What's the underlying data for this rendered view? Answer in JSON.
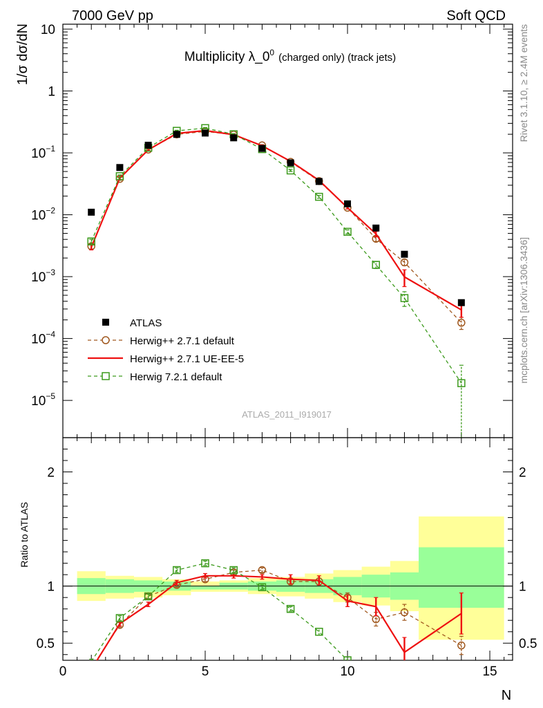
{
  "header": {
    "energy": "7000 GeV pp",
    "category": "Soft QCD"
  },
  "side": {
    "rivet": "Rivet 3.1.10, ≥ 2.4M events",
    "source": "mcplots.cern.ch [arXiv:1306.3436]"
  },
  "watermark": "ATLAS_2011_I919017",
  "colors": {
    "data": "#000000",
    "herwigpp_default": "#a0581e",
    "herwigpp_ueee5": "#ee1111",
    "herwig7": "#3c9a1c",
    "band_inner": "#99ff99",
    "band_outer": "#ffff99"
  },
  "chart_data": [
    {
      "type": "scatter",
      "title": "Multiplicity λ_0⁰ (charged only) (track jets)",
      "title_main": "Multiplicity λ_0",
      "title_sup": "0",
      "title_sub": "(charged only) (track jets)",
      "ylabel": "1/σ dσ/dN",
      "yscale": "log",
      "ylim": [
        2.5e-06,
        12
      ],
      "xlim": [
        0,
        15.8
      ],
      "y_ticks": [
        {
          "value": 10,
          "label": "10",
          "exp": ""
        },
        {
          "value": 1,
          "label": "1",
          "exp": ""
        },
        {
          "value": 0.1,
          "label": "10",
          "exp": "−1"
        },
        {
          "value": 0.01,
          "label": "10",
          "exp": "−2"
        },
        {
          "value": 0.001,
          "label": "10",
          "exp": "−3"
        },
        {
          "value": 0.0001,
          "label": "10",
          "exp": "−4"
        },
        {
          "value": 1e-05,
          "label": "10",
          "exp": "−5"
        }
      ],
      "legend_position": "lower-left",
      "series": [
        {
          "name": "ATLAS",
          "style": "data",
          "x": [
            1,
            2,
            3,
            4,
            5,
            6,
            7,
            8,
            9,
            10,
            11,
            12,
            14
          ],
          "y": [
            0.011,
            0.058,
            0.133,
            0.199,
            0.209,
            0.175,
            0.118,
            0.069,
            0.0345,
            0.015,
            0.0061,
            0.0023,
            0.00038
          ]
        },
        {
          "name": "Herwig++ 2.7.1 default",
          "style": "dashed-circle",
          "x": [
            1,
            2,
            3,
            4,
            5,
            6,
            7,
            8,
            9,
            10,
            11,
            12,
            14
          ],
          "y": [
            0.0031,
            0.038,
            0.113,
            0.199,
            0.222,
            0.197,
            0.132,
            0.0715,
            0.035,
            0.013,
            0.0041,
            0.0017,
            0.00018
          ],
          "err": [
            0.0003,
            0.002,
            0.004,
            0.005,
            0.005,
            0.005,
            0.004,
            0.002,
            0.0012,
            0.0006,
            0.0004,
            0.0002,
            4e-05
          ]
        },
        {
          "name": "Herwig++ 2.7.1 UE-EE-5",
          "style": "solid",
          "x": [
            1,
            2,
            3,
            4,
            5,
            6,
            7,
            8,
            9,
            10,
            11,
            12,
            14
          ],
          "y": [
            0.003,
            0.039,
            0.112,
            0.206,
            0.229,
            0.197,
            0.13,
            0.073,
            0.036,
            0.013,
            0.0049,
            0.00099,
            0.00029
          ],
          "err": [
            0.0003,
            0.002,
            0.004,
            0.005,
            0.005,
            0.005,
            0.004,
            0.002,
            0.0012,
            0.0006,
            0.0005,
            0.0003,
            7e-05
          ]
        },
        {
          "name": "Herwig 7.2.1 default",
          "style": "dashed-square",
          "x": [
            1,
            2,
            3,
            4,
            5,
            6,
            7,
            8,
            9,
            10,
            11,
            12,
            14
          ],
          "y": [
            0.0037,
            0.042,
            0.121,
            0.227,
            0.251,
            0.2,
            0.115,
            0.052,
            0.0195,
            0.0053,
            0.00155,
            0.00045,
            1.9e-05
          ],
          "err": [
            0.0003,
            0.002,
            0.004,
            0.005,
            0.006,
            0.005,
            0.004,
            0.002,
            0.001,
            0.0004,
            0.0002,
            0.00012,
            1.8e-05
          ]
        }
      ]
    },
    {
      "type": "line",
      "ylabel": "Ratio to ATLAS",
      "xlabel": "N",
      "xlim": [
        0,
        15.8
      ],
      "ylim": [
        0.35,
        2.3
      ],
      "x_ticks": [
        0,
        5,
        10,
        15
      ],
      "y_ticks": [
        0.5,
        1,
        2
      ],
      "bands": [
        {
          "x0": 0.5,
          "x1": 1.5,
          "inner": [
            0.93,
            1.07
          ],
          "outer": [
            0.87,
            1.13
          ]
        },
        {
          "x0": 1.5,
          "x1": 2.5,
          "inner": [
            0.94,
            1.06
          ],
          "outer": [
            0.89,
            1.09
          ]
        },
        {
          "x0": 2.5,
          "x1": 3.5,
          "inner": [
            0.95,
            1.05
          ],
          "outer": [
            0.9,
            1.08
          ]
        },
        {
          "x0": 3.5,
          "x1": 4.5,
          "inner": [
            0.96,
            1.04
          ],
          "outer": [
            0.92,
            1.06
          ]
        },
        {
          "x0": 4.5,
          "x1": 5.5,
          "inner": [
            0.97,
            1.0
          ],
          "outer": [
            0.95,
            1.04
          ]
        },
        {
          "x0": 5.5,
          "x1": 6.5,
          "inner": [
            0.97,
            1.03
          ],
          "outer": [
            0.95,
            1.05
          ]
        },
        {
          "x0": 6.5,
          "x1": 7.5,
          "inner": [
            0.96,
            1.04
          ],
          "outer": [
            0.93,
            1.07
          ]
        },
        {
          "x0": 7.5,
          "x1": 8.5,
          "inner": [
            0.95,
            1.05
          ],
          "outer": [
            0.91,
            1.08
          ]
        },
        {
          "x0": 8.5,
          "x1": 9.5,
          "inner": [
            0.94,
            1.06
          ],
          "outer": [
            0.89,
            1.11
          ]
        },
        {
          "x0": 9.5,
          "x1": 10.5,
          "inner": [
            0.92,
            1.08
          ],
          "outer": [
            0.86,
            1.14
          ]
        },
        {
          "x0": 10.5,
          "x1": 11.5,
          "inner": [
            0.9,
            1.1
          ],
          "outer": [
            0.83,
            1.17
          ]
        },
        {
          "x0": 11.5,
          "x1": 12.5,
          "inner": [
            0.88,
            1.12
          ],
          "outer": [
            0.78,
            1.22
          ]
        },
        {
          "x0": 12.5,
          "x1": 15.5,
          "inner": [
            0.81,
            1.34
          ],
          "outer": [
            0.53,
            1.61
          ]
        }
      ],
      "series": [
        {
          "name": "Herwig++ 2.7.1 default",
          "style": "dashed-circle",
          "x": [
            1,
            2,
            3,
            4,
            5,
            6,
            7,
            8,
            9,
            10,
            11,
            12,
            14
          ],
          "y": [
            0.28,
            0.66,
            0.91,
            1.01,
            1.06,
            1.12,
            1.14,
            1.04,
            1.04,
            0.9,
            0.71,
            0.77,
            0.48
          ],
          "err": [
            0.02,
            0.02,
            0.02,
            0.02,
            0.02,
            0.02,
            0.02,
            0.03,
            0.03,
            0.04,
            0.06,
            0.07,
            0.08
          ]
        },
        {
          "name": "Herwig++ 2.7.1 UE-EE-5",
          "style": "solid",
          "x": [
            1,
            2,
            3,
            4,
            5,
            6,
            7,
            8,
            9,
            10,
            11,
            12,
            14
          ],
          "y": [
            0.27,
            0.67,
            0.84,
            1.03,
            1.09,
            1.09,
            1.08,
            1.06,
            1.05,
            0.87,
            0.82,
            0.42,
            0.76
          ],
          "err": [
            0.02,
            0.02,
            0.02,
            0.02,
            0.02,
            0.02,
            0.02,
            0.04,
            0.04,
            0.05,
            0.08,
            0.13,
            0.18
          ]
        },
        {
          "name": "Herwig 7.2.1 default",
          "style": "dashed-square",
          "x": [
            1,
            2,
            3,
            4,
            5,
            6,
            7,
            8,
            9,
            10
          ],
          "y": [
            0.34,
            0.72,
            0.91,
            1.14,
            1.2,
            1.14,
            0.99,
            0.8,
            0.6,
            0.35
          ],
          "err": [
            0.02,
            0.02,
            0.02,
            0.02,
            0.02,
            0.02,
            0.02,
            0.02,
            0.03,
            0.03
          ]
        }
      ]
    }
  ]
}
